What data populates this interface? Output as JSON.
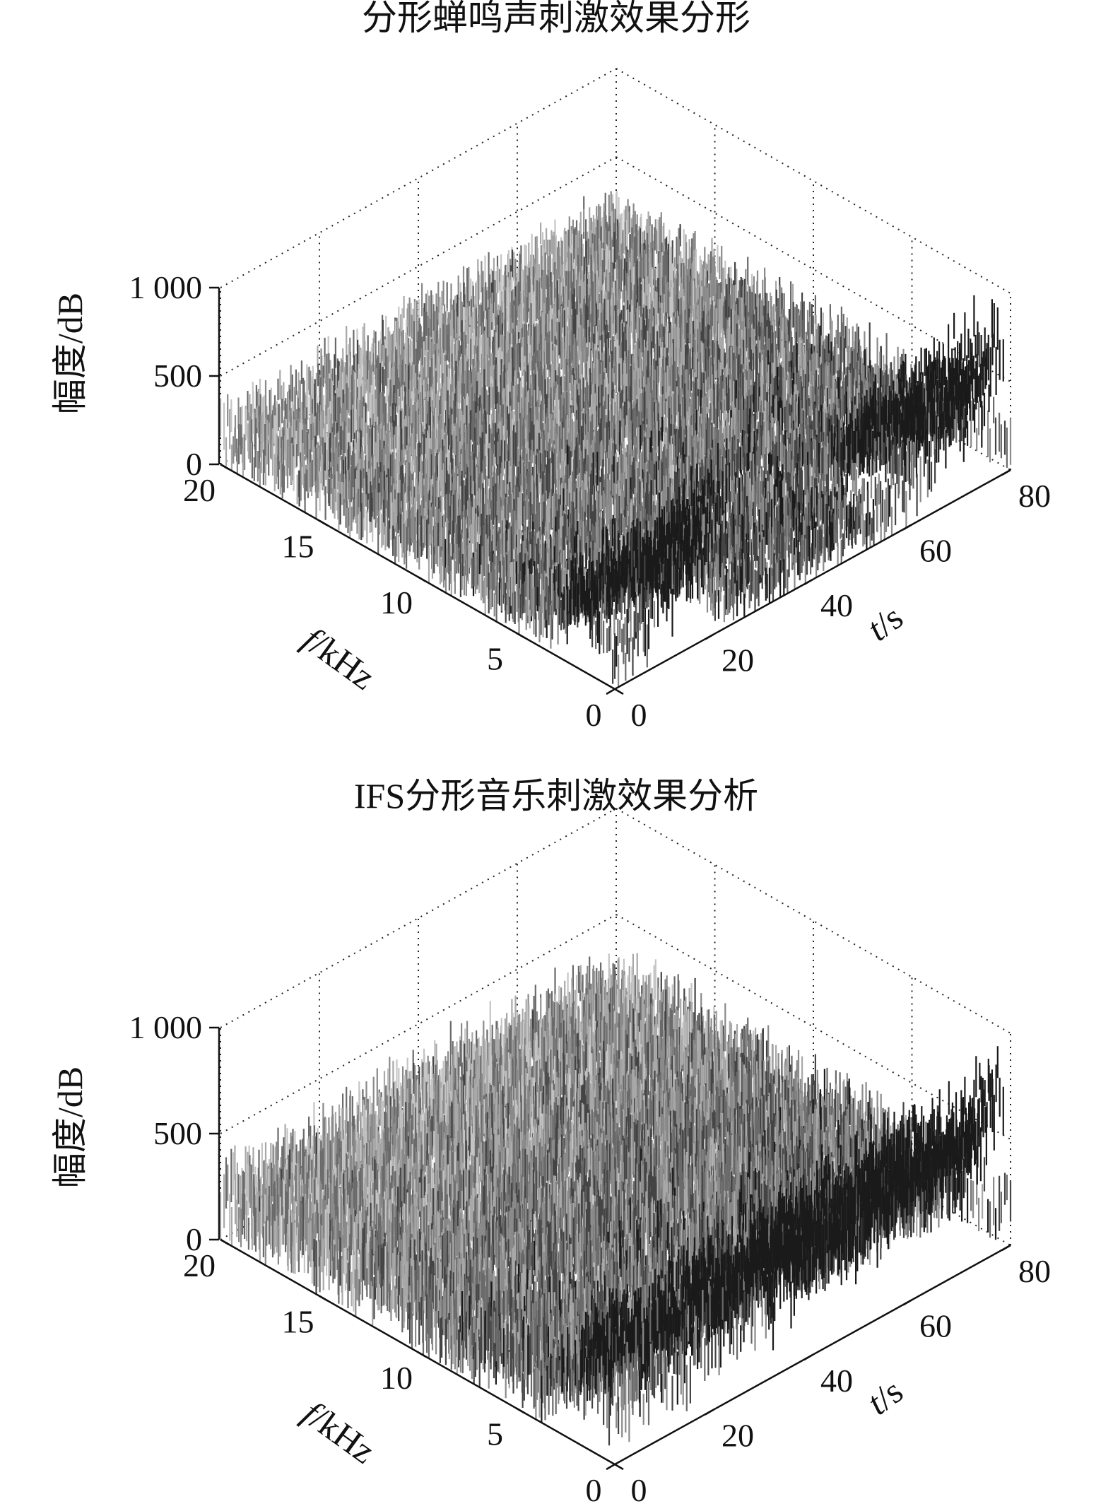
{
  "chart_data": [
    {
      "type": "surface3d",
      "title": "分形蝉鸣声刺激效果分形",
      "zlabel": "幅度/dB",
      "flabel_italic": "f",
      "flabel_rest": "/kHz",
      "tlabel_italic": "t",
      "tlabel_rest": "/s",
      "z_range": [
        0,
        1000
      ],
      "z_ticks": [
        0,
        500,
        1000
      ],
      "z_tick_labels": [
        "0",
        "500",
        "1 000"
      ],
      "f_range": [
        0,
        20
      ],
      "f_ticks": [
        0,
        5,
        10,
        15,
        20
      ],
      "f_tick_labels": [
        "0",
        "5",
        "10",
        "15",
        "20"
      ],
      "t_range": [
        0,
        80
      ],
      "t_ticks": [
        0,
        20,
        40,
        60,
        80
      ],
      "t_tick_labels": [
        "0",
        "20",
        "40",
        "60",
        "80"
      ],
      "grid": true,
      "baseline_amplitude": 250,
      "ridges": [
        {
          "f_start": 2,
          "f_end": 0.3,
          "t_start": 0,
          "t_end": 22,
          "peak_amplitude": 900,
          "t_peak": 21
        },
        {
          "f_start": 2,
          "f_end": 0.3,
          "t_start": 55,
          "t_end": 79,
          "peak_amplitude": 950,
          "t_peak": 78
        }
      ]
    },
    {
      "type": "surface3d",
      "title": "IFS分形音乐刺激效果分析",
      "zlabel": "幅度/dB",
      "flabel_italic": "f",
      "flabel_rest": "/kHz",
      "tlabel_italic": "t",
      "tlabel_rest": "/s",
      "z_range": [
        0,
        1000
      ],
      "z_ticks": [
        0,
        500,
        1000
      ],
      "z_tick_labels": [
        "0",
        "500",
        "1 000"
      ],
      "f_range": [
        0,
        20
      ],
      "f_ticks": [
        0,
        5,
        10,
        15,
        20
      ],
      "f_tick_labels": [
        "0",
        "5",
        "10",
        "15",
        "20"
      ],
      "t_range": [
        0,
        80
      ],
      "t_ticks": [
        0,
        20,
        40,
        60,
        80
      ],
      "t_tick_labels": [
        "0",
        "20",
        "40",
        "60",
        "80"
      ],
      "grid": true,
      "baseline_amplitude": 280,
      "ridges": [
        {
          "f_start": 1.5,
          "f_end": 0.3,
          "t_start": 0,
          "t_end": 79,
          "peak_amplitude": 850,
          "t_peak": 78
        }
      ]
    }
  ]
}
